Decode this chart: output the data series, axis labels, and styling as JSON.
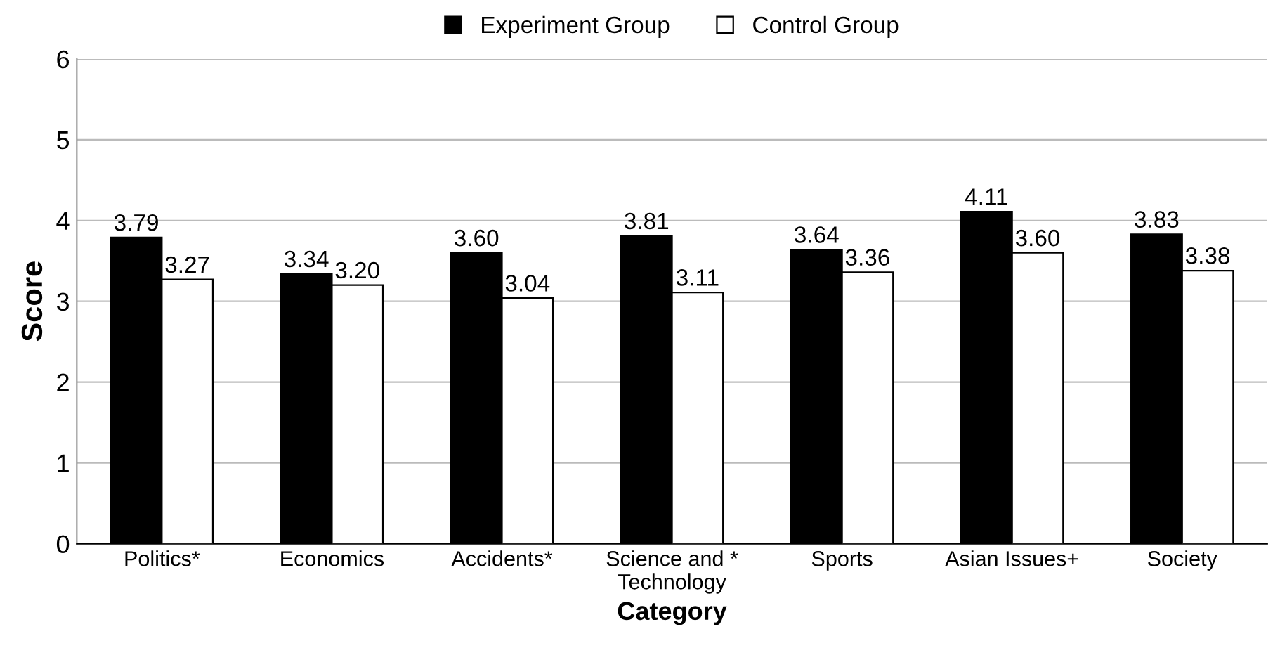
{
  "chart_data": {
    "type": "bar",
    "xlabel": "Category",
    "ylabel": "Score",
    "categories": [
      "Politics*",
      "Economics",
      "Accidents*",
      "Science and *\nTechnology",
      "Sports",
      "Asian Issues+",
      "Society"
    ],
    "series": [
      {
        "name": "Experiment Group",
        "color": "#000000",
        "values": [
          3.79,
          3.34,
          3.6,
          3.81,
          3.64,
          4.11,
          3.83
        ],
        "value_labels": [
          "3.79",
          "3.34",
          "3.60",
          "3.81",
          "3.64",
          "4.11",
          "3.83"
        ]
      },
      {
        "name": "Control Group",
        "color": "#ffffff",
        "values": [
          3.27,
          3.2,
          3.04,
          3.11,
          3.36,
          3.6,
          3.38
        ],
        "value_labels": [
          "3.27",
          "3.20",
          "3.04",
          "3.11",
          "3.36",
          "3.60",
          "3.38"
        ]
      }
    ],
    "ylim": [
      0,
      6
    ],
    "yticks": [
      0,
      1,
      2,
      3,
      4,
      5,
      6
    ],
    "grid": "y",
    "legend": "top"
  }
}
